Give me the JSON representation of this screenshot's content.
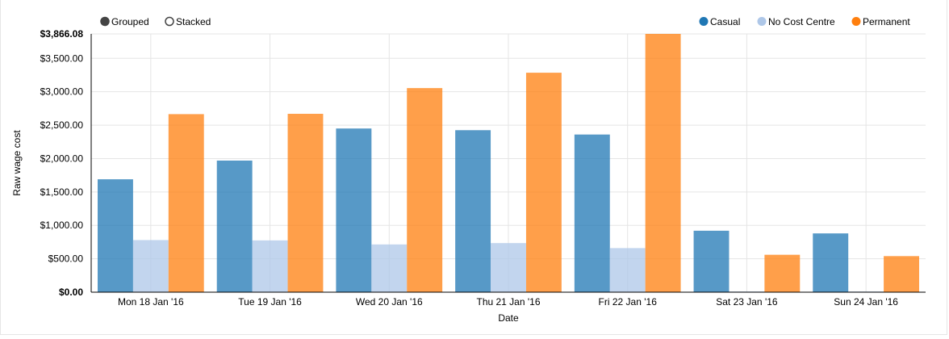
{
  "controls": {
    "grouped_label": "Grouped",
    "stacked_label": "Stacked",
    "selected": "grouped"
  },
  "chart_data": {
    "type": "bar",
    "mode": "grouped",
    "title": "",
    "xlabel": "Date",
    "ylabel": "Raw wage cost",
    "ylim": [
      0,
      3866.08
    ],
    "y_ticks": [
      {
        "value": 0,
        "label": "$0.00",
        "bold": true
      },
      {
        "value": 500,
        "label": "$500.00",
        "bold": false
      },
      {
        "value": 1000,
        "label": "$1,000.00",
        "bold": false
      },
      {
        "value": 1500,
        "label": "$1,500.00",
        "bold": false
      },
      {
        "value": 2000,
        "label": "$2,000.00",
        "bold": false
      },
      {
        "value": 2500,
        "label": "$2,500.00",
        "bold": false
      },
      {
        "value": 3000,
        "label": "$3,000.00",
        "bold": false
      },
      {
        "value": 3500,
        "label": "$3,500.00",
        "bold": false
      },
      {
        "value": 3866.08,
        "label": "$3,866.08",
        "bold": true
      }
    ],
    "categories": [
      "Mon 18 Jan '16",
      "Tue 19 Jan '16",
      "Wed 20 Jan '16",
      "Thu 21 Jan '16",
      "Fri 22 Jan '16",
      "Sat 23 Jan '16",
      "Sun 24 Jan '16"
    ],
    "legend_position": "top-right",
    "series": [
      {
        "name": "Casual",
        "color": "#1f77b4",
        "values": [
          1690,
          1970,
          2450,
          2425,
          2360,
          920,
          880
        ]
      },
      {
        "name": "No Cost Centre",
        "color": "#aec7e8",
        "values": [
          780,
          775,
          715,
          735,
          660,
          10,
          10
        ]
      },
      {
        "name": "Permanent",
        "color": "#ff7f0e",
        "values": [
          2665,
          2670,
          3055,
          3285,
          3866.08,
          560,
          540
        ]
      }
    ]
  }
}
